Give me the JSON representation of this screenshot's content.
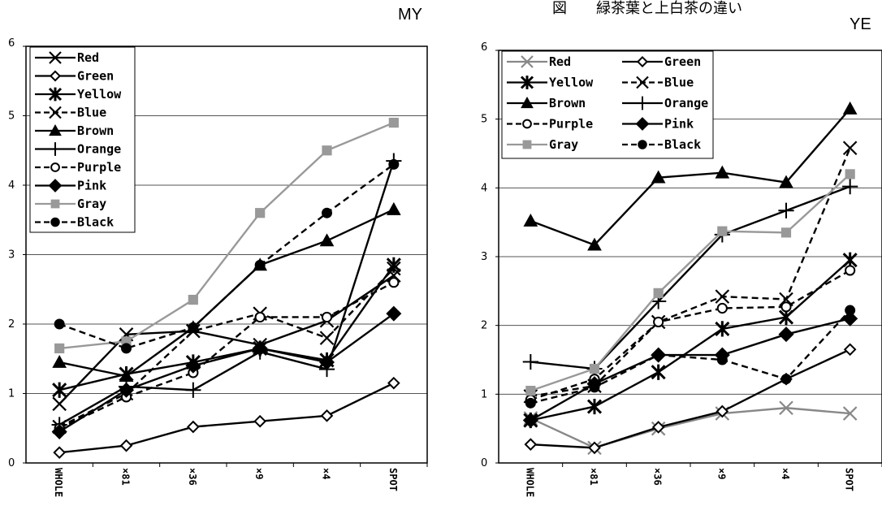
{
  "page": {
    "top_text": "図　　緑茶葉と上白茶の違い"
  },
  "chart_data": [
    {
      "type": "line",
      "title": "MY",
      "categories": [
        "WHOLE",
        "×81",
        "×36",
        "×9",
        "×4",
        "SPOT"
      ],
      "y_ticks": [
        "0",
        "1",
        "2",
        "3",
        "4",
        "5",
        "6"
      ],
      "ylim": [
        0,
        6
      ],
      "grid": true,
      "legend_position": "top-left",
      "legend_columns": 1,
      "series": [
        {
          "name": "Red",
          "values": [
            0.85,
            1.85,
            1.9,
            1.7,
            2.05,
            2.7
          ],
          "marker": "x",
          "dash": false,
          "color": "#000000"
        },
        {
          "name": "Green",
          "values": [
            0.15,
            0.25,
            0.52,
            0.6,
            0.68,
            1.15
          ],
          "marker": "diamond-open",
          "dash": false,
          "color": "#000000"
        },
        {
          "name": "Yellow",
          "values": [
            1.05,
            1.28,
            1.45,
            1.65,
            1.48,
            2.85
          ],
          "marker": "star",
          "dash": false,
          "color": "#000000"
        },
        {
          "name": "Blue",
          "values": [
            0.52,
            1.0,
            1.9,
            2.15,
            1.8,
            2.8
          ],
          "marker": "x",
          "dash": true,
          "color": "#000000"
        },
        {
          "name": "Brown",
          "values": [
            1.45,
            1.25,
            1.95,
            2.85,
            3.2,
            3.65
          ],
          "marker": "triangle",
          "dash": false,
          "color": "#000000"
        },
        {
          "name": "Orange",
          "values": [
            0.55,
            1.1,
            1.05,
            1.6,
            1.35,
            4.35
          ],
          "marker": "plus",
          "dash": false,
          "color": "#000000"
        },
        {
          "name": "Purple",
          "values": [
            0.5,
            0.95,
            1.3,
            2.1,
            2.1,
            2.6
          ],
          "marker": "circle-open",
          "dash": true,
          "color": "#000000"
        },
        {
          "name": "Pink",
          "values": [
            0.45,
            1.05,
            1.4,
            1.65,
            1.45,
            2.15
          ],
          "marker": "diamond",
          "dash": false,
          "color": "#000000"
        },
        {
          "name": "Gray",
          "values": [
            1.65,
            1.75,
            2.35,
            3.6,
            4.5,
            4.9
          ],
          "marker": "square",
          "dash": false,
          "color": "#999999"
        },
        {
          "name": "Black",
          "values": [
            2.0,
            1.65,
            1.95,
            2.85,
            3.6,
            4.3
          ],
          "marker": "circle",
          "dash": true,
          "color": "#000000"
        }
      ]
    },
    {
      "type": "line",
      "title": "YE",
      "categories": [
        "WHOLE",
        "×81",
        "×36",
        "×9",
        "×4",
        "SPOT"
      ],
      "y_ticks": [
        "0",
        "1",
        "2",
        "3",
        "4",
        "5",
        "6"
      ],
      "ylim": [
        0,
        6
      ],
      "grid": true,
      "legend_position": "top-left",
      "legend_columns": 2,
      "series": [
        {
          "name": "Red",
          "values": [
            0.65,
            0.22,
            0.5,
            0.72,
            0.8,
            0.72
          ],
          "marker": "x",
          "dash": false,
          "color": "#888888"
        },
        {
          "name": "Green",
          "values": [
            0.27,
            0.22,
            0.52,
            0.75,
            1.22,
            1.65
          ],
          "marker": "diamond-open",
          "dash": false,
          "color": "#000000"
        },
        {
          "name": "Yellow",
          "values": [
            0.62,
            0.82,
            1.32,
            1.95,
            2.12,
            2.95
          ],
          "marker": "star",
          "dash": false,
          "color": "#000000"
        },
        {
          "name": "Blue",
          "values": [
            0.97,
            1.12,
            2.05,
            2.42,
            2.38,
            4.58
          ],
          "marker": "x",
          "dash": true,
          "color": "#000000"
        },
        {
          "name": "Brown",
          "values": [
            3.52,
            3.17,
            4.15,
            4.22,
            4.08,
            5.15
          ],
          "marker": "triangle",
          "dash": false,
          "color": "#000000"
        },
        {
          "name": "Orange",
          "values": [
            1.47,
            1.37,
            2.35,
            3.32,
            3.67,
            4.02
          ],
          "marker": "plus",
          "dash": false,
          "color": "#000000"
        },
        {
          "name": "Purple",
          "values": [
            0.92,
            1.22,
            2.05,
            2.25,
            2.27,
            2.8
          ],
          "marker": "circle-open",
          "dash": true,
          "color": "#000000"
        },
        {
          "name": "Pink",
          "values": [
            0.62,
            1.15,
            1.57,
            1.57,
            1.87,
            2.1
          ],
          "marker": "diamond",
          "dash": false,
          "color": "#000000"
        },
        {
          "name": "Gray",
          "values": [
            1.05,
            1.37,
            2.47,
            3.37,
            3.35,
            4.2
          ],
          "marker": "square",
          "dash": false,
          "color": "#999999"
        },
        {
          "name": "Black",
          "values": [
            0.87,
            1.1,
            1.57,
            1.5,
            1.22,
            2.22
          ],
          "marker": "circle",
          "dash": true,
          "color": "#000000"
        }
      ]
    }
  ]
}
